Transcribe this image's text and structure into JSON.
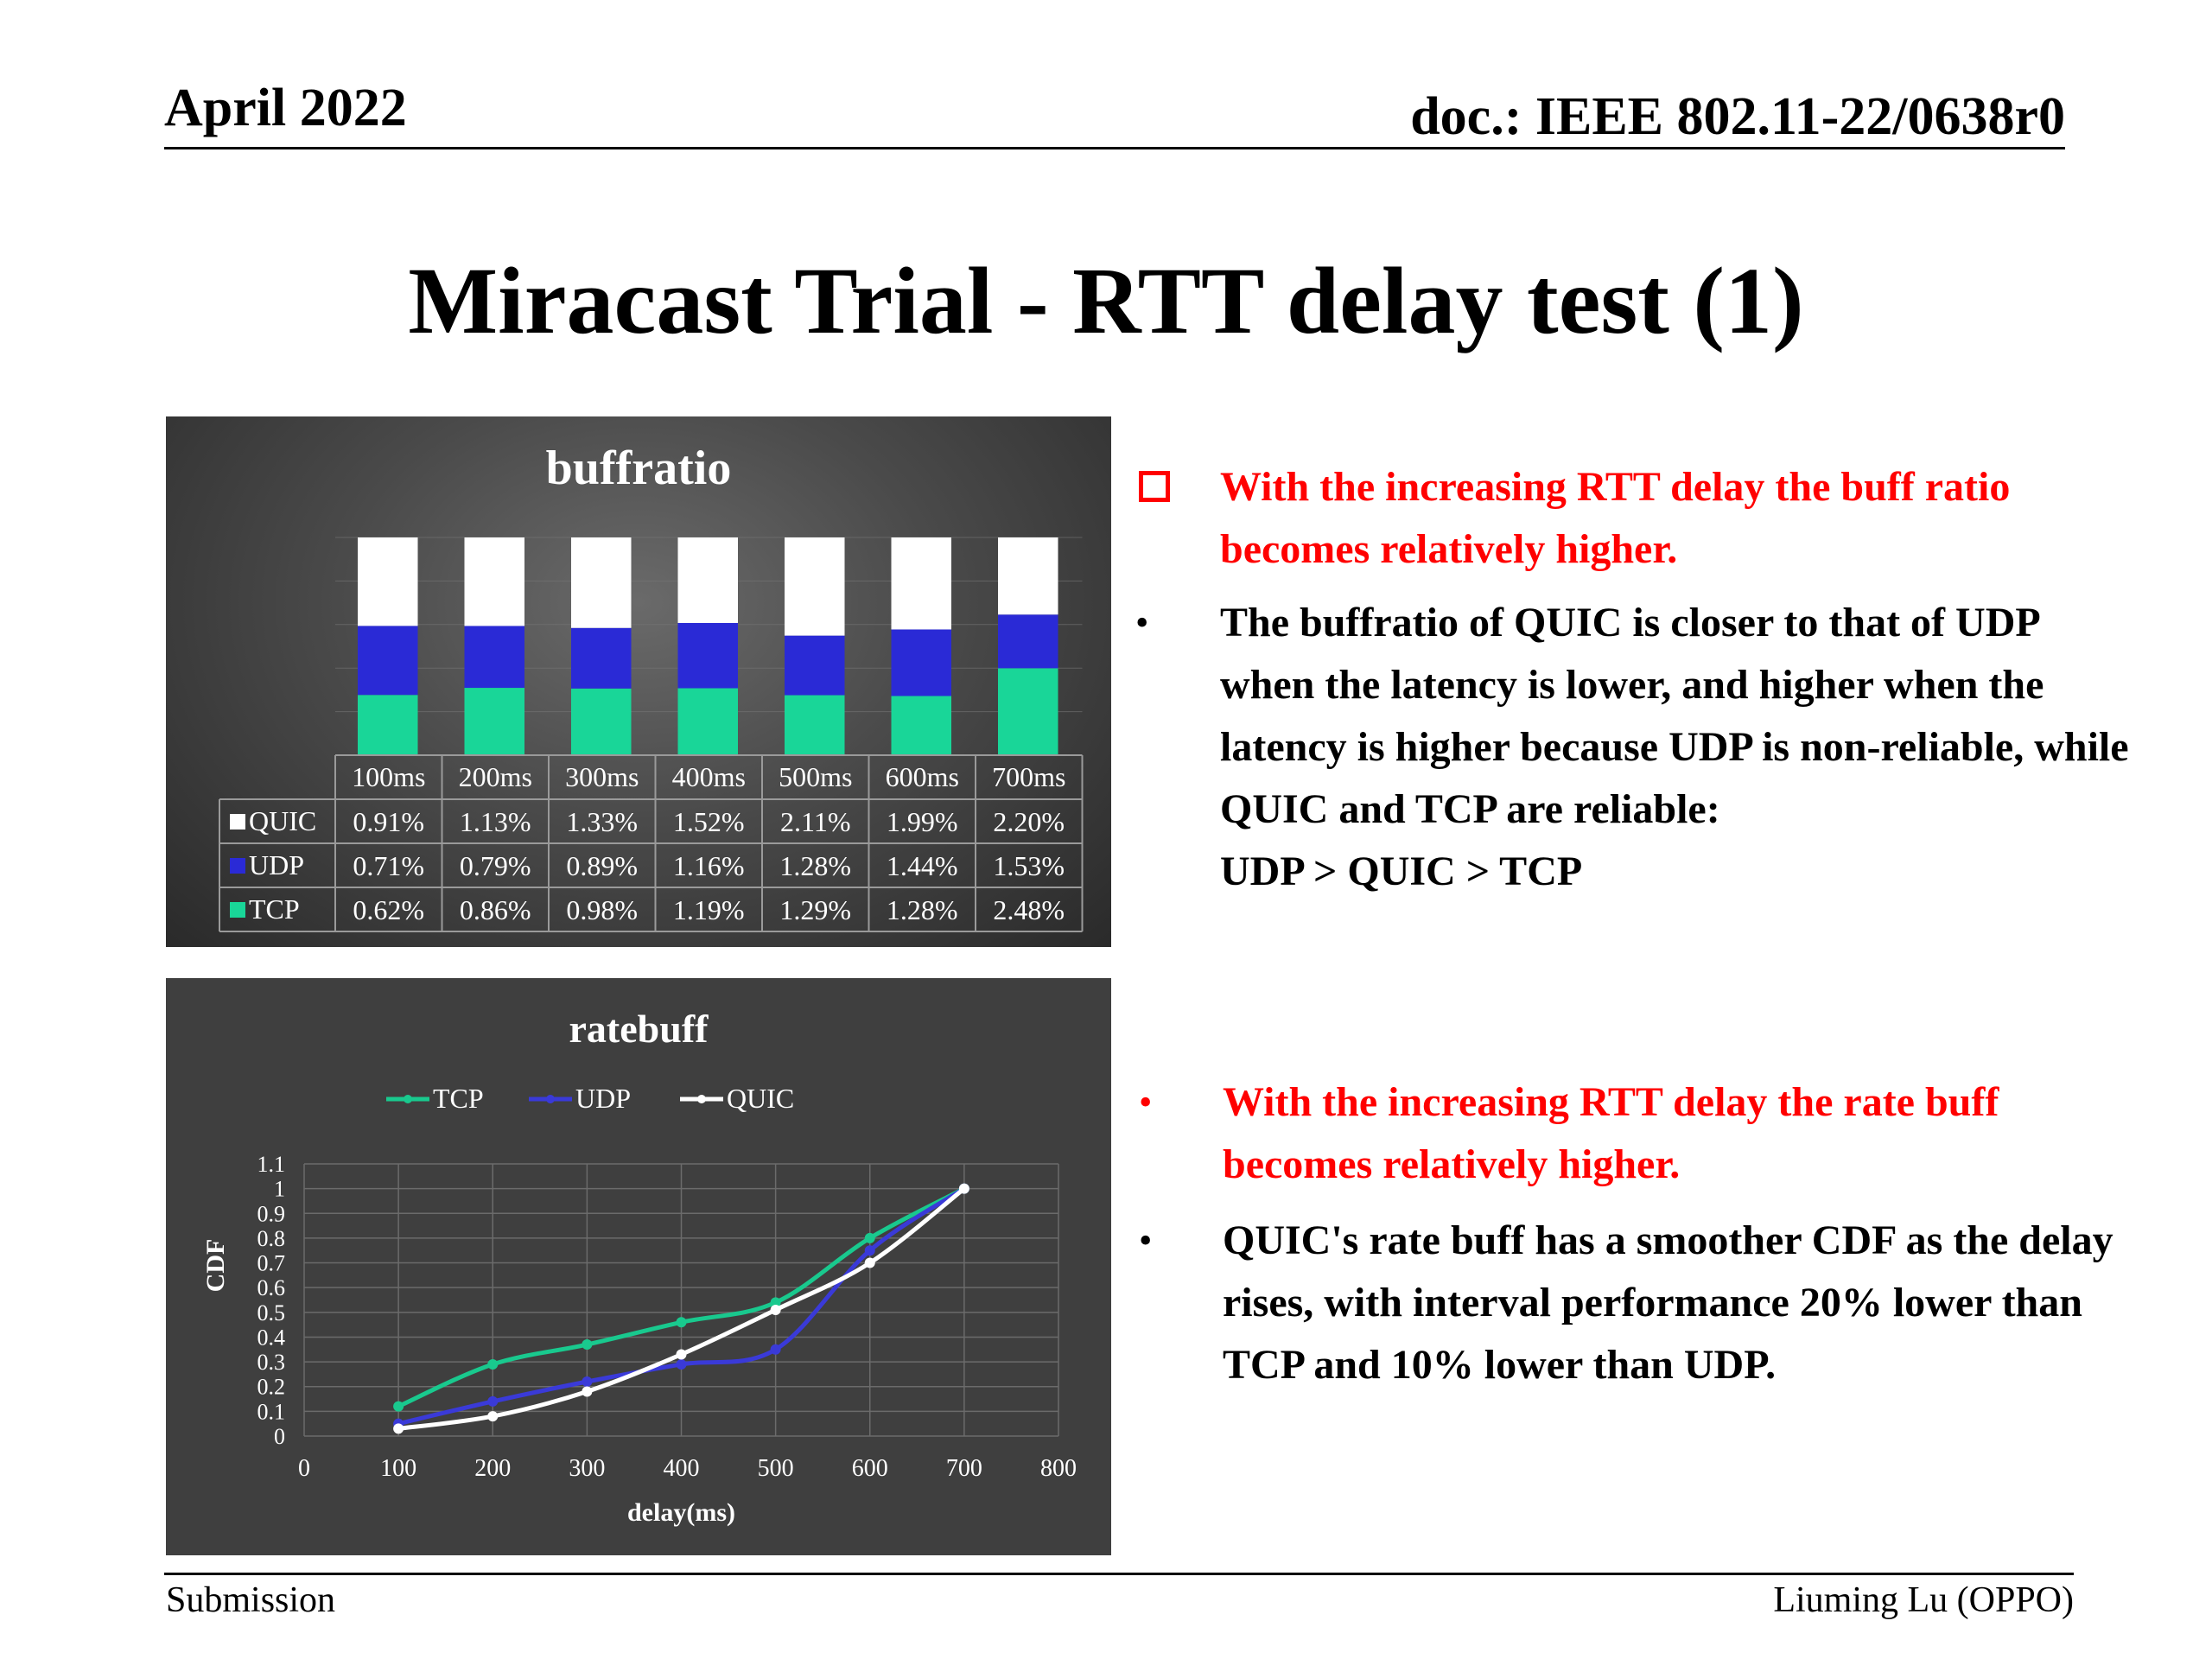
{
  "header": {
    "date": "April 2022",
    "doc_id": "doc.: IEEE 802.11-22/0638r0"
  },
  "title": "Miracast Trial - RTT delay test (1)",
  "bullets": [
    {
      "text": "With the increasing RTT delay the buff ratio becomes relatively higher.",
      "color": "#ff0000"
    },
    {
      "text": "The buffratio of QUIC is closer to that of UDP when the latency is lower, and higher when the latency is higher because UDP is non-reliable, while QUIC and TCP are reliable:",
      "line2": "UDP > QUIC > TCP",
      "color": "#000000"
    },
    {
      "text": "With the increasing RTT delay the rate buff becomes relatively higher.",
      "color": "#ff0000"
    },
    {
      "text": "QUIC's rate buff has a smoother CDF as the delay rises, with interval performance 20% lower than TCP and 10% lower than UDP.",
      "color": "#000000"
    }
  ],
  "bullet_glyph": "•",
  "footer": {
    "left": "Submission",
    "right": "Liuming Lu (OPPO)"
  },
  "chart_data": [
    {
      "type": "bar",
      "stacked": true,
      "title": "buffratio",
      "categories": [
        "100ms",
        "200ms",
        "300ms",
        "400ms",
        "500ms",
        "600ms",
        "700ms"
      ],
      "series": [
        {
          "name": "QUIC",
          "color": "#ffffff",
          "values": [
            0.91,
            1.13,
            1.33,
            1.52,
            2.11,
            1.99,
            2.2
          ],
          "labels": [
            "0.91%",
            "1.13%",
            "1.33%",
            "1.52%",
            "2.11%",
            "1.99%",
            "2.20%"
          ]
        },
        {
          "name": "UDP",
          "color": "#2a2ad6",
          "values": [
            0.71,
            0.79,
            0.89,
            1.16,
            1.28,
            1.44,
            1.53
          ],
          "labels": [
            "0.71%",
            "0.79%",
            "0.89%",
            "1.16%",
            "1.28%",
            "1.44%",
            "1.53%"
          ]
        },
        {
          "name": "TCP",
          "color": "#19d698",
          "values": [
            0.62,
            0.86,
            0.98,
            1.19,
            1.29,
            1.28,
            2.48
          ],
          "labels": [
            "0.62%",
            "0.86%",
            "0.98%",
            "1.19%",
            "1.29%",
            "1.28%",
            "2.48%"
          ]
        }
      ],
      "stack_order": [
        "TCP",
        "UDP",
        "QUIC"
      ],
      "normalized": true,
      "data_table": true
    },
    {
      "type": "line",
      "title": "ratebuff",
      "xlabel": "delay(ms)",
      "ylabel": "CDF",
      "xlim": [
        0,
        800
      ],
      "ylim": [
        0,
        1.1
      ],
      "xticks": [
        0,
        100,
        200,
        300,
        400,
        500,
        600,
        700,
        800
      ],
      "yticks": [
        0,
        0.1,
        0.2,
        0.3,
        0.4,
        0.5,
        0.6,
        0.7,
        0.8,
        0.9,
        1,
        1.1
      ],
      "grid": true,
      "legend": "top",
      "x": [
        100,
        200,
        300,
        400,
        500,
        600,
        700
      ],
      "series": [
        {
          "name": "TCP",
          "color": "#19c98e",
          "values": [
            0.12,
            0.29,
            0.37,
            0.46,
            0.54,
            0.8,
            1.0
          ]
        },
        {
          "name": "UDP",
          "color": "#3a3ad8",
          "values": [
            0.05,
            0.14,
            0.22,
            0.29,
            0.35,
            0.75,
            1.0
          ]
        },
        {
          "name": "QUIC",
          "color": "#ffffff",
          "values": [
            0.03,
            0.08,
            0.18,
            0.33,
            0.51,
            0.7,
            1.0
          ]
        }
      ]
    }
  ]
}
